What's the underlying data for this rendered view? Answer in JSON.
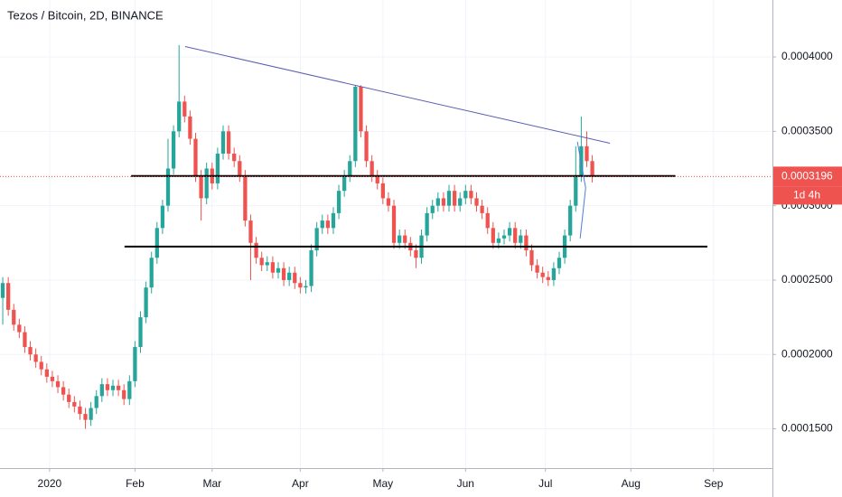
{
  "chart_data": {
    "type": "candlestick",
    "title": "Tezos / Bitcoin, 2D, BINANCE",
    "up_color": "#26a69a",
    "down_color": "#ef5350",
    "open": [
      0.000238,
      0.000248,
      0.00023,
      0.00022,
      0.000215,
      0.000205,
      0.0002,
      0.000195,
      0.00019,
      0.000185,
      0.000182,
      0.000178,
      0.000173,
      0.000168,
      0.000165,
      0.00016,
      0.000156,
      0.000164,
      0.000172,
      0.00018,
      0.000176,
      0.000179,
      0.000176,
      0.00017,
      0.000182,
      0.000205,
      0.000225,
      0.000245,
      0.000265,
      0.000285,
      0.0003,
      0.000325,
      0.00035,
      0.00037,
      0.00036,
      0.000345,
      0.00032,
      0.000305,
      0.000325,
      0.000315,
      0.000335,
      0.00035,
      0.000335,
      0.00033,
      0.00032,
      0.00029,
      0.000275,
      0.000265,
      0.00026,
      0.000262,
      0.000255,
      0.000258,
      0.00025,
      0.000255,
      0.000248,
      0.000245,
      0.000246,
      0.00027,
      0.000285,
      0.00029,
      0.000285,
      0.000295,
      0.00031,
      0.00032,
      0.00033,
      0.00038,
      0.00035,
      0.00033,
      0.00032,
      0.000315,
      0.000305,
      0.0003,
      0.000275,
      0.00028,
      0.000275,
      0.00027,
      0.000265,
      0.00028,
      0.000295,
      0.0003,
      0.000305,
      0.0003,
      0.00031,
      0.0003,
      0.000305,
      0.00031,
      0.000305,
      0.0003,
      0.000295,
      0.000285,
      0.000275,
      0.000278,
      0.00028,
      0.000285,
      0.000275,
      0.00028,
      0.00027,
      0.00026,
      0.000255,
      0.000252,
      0.00025,
      0.000258,
      0.000265,
      0.00028,
      0.0003,
      0.00032,
      0.00034,
      0.00033
    ],
    "high": [
      0.000252,
      0.000252,
      0.000234,
      0.000224,
      0.000219,
      0.000209,
      0.000204,
      0.000199,
      0.000194,
      0.000189,
      0.000186,
      0.000182,
      0.000177,
      0.000172,
      0.000169,
      0.000164,
      0.000168,
      0.000176,
      0.000184,
      0.000184,
      0.000183,
      0.000183,
      0.00018,
      0.000186,
      0.000209,
      0.000229,
      0.000249,
      0.000269,
      0.000289,
      0.000304,
      0.000345,
      0.000354,
      0.000408,
      0.000374,
      0.000364,
      0.000349,
      0.000324,
      0.000329,
      0.000329,
      0.000339,
      0.000354,
      0.000354,
      0.000339,
      0.000334,
      0.000324,
      0.000294,
      0.000279,
      0.000269,
      0.000266,
      0.000266,
      0.000262,
      0.000262,
      0.000259,
      0.000259,
      0.000252,
      0.00025,
      0.000274,
      0.000289,
      0.000294,
      0.000294,
      0.000299,
      0.000314,
      0.000324,
      0.000334,
      0.000381,
      0.000381,
      0.000354,
      0.000334,
      0.000324,
      0.000319,
      0.000309,
      0.000304,
      0.000284,
      0.000284,
      0.000279,
      0.000274,
      0.000284,
      0.000299,
      0.000304,
      0.000309,
      0.000309,
      0.000314,
      0.000314,
      0.000309,
      0.000314,
      0.000314,
      0.000309,
      0.000304,
      0.000299,
      0.000289,
      0.000282,
      0.000284,
      0.000289,
      0.000289,
      0.000284,
      0.000284,
      0.000274,
      0.000264,
      0.000259,
      0.000256,
      0.000262,
      0.000269,
      0.000284,
      0.000304,
      0.00034,
      0.00036,
      0.00035,
      0.000334
    ],
    "low": [
      0.00022,
      0.000226,
      0.000216,
      0.000211,
      0.000201,
      0.000196,
      0.000191,
      0.000186,
      0.000181,
      0.000178,
      0.000174,
      0.000169,
      0.000164,
      0.000161,
      0.000156,
      0.00015,
      0.000152,
      0.00016,
      0.000168,
      0.000172,
      0.000172,
      0.000172,
      0.000166,
      0.000166,
      0.000178,
      0.000201,
      0.000221,
      0.000241,
      0.000261,
      0.000281,
      0.000296,
      0.000321,
      0.000346,
      0.000356,
      0.000341,
      0.000316,
      0.00029,
      0.000301,
      0.000311,
      0.000311,
      0.000331,
      0.000331,
      0.000326,
      0.000316,
      0.000286,
      0.00025,
      0.000261,
      0.000256,
      0.000256,
      0.000251,
      0.000251,
      0.000246,
      0.000246,
      0.000244,
      0.000241,
      0.000241,
      0.000242,
      0.000266,
      0.000281,
      0.000281,
      0.000281,
      0.000291,
      0.000306,
      0.000316,
      0.000326,
      0.000346,
      0.000326,
      0.000316,
      0.000311,
      0.000301,
      0.000296,
      0.000271,
      0.000271,
      0.000271,
      0.000266,
      0.000258,
      0.000261,
      0.000276,
      0.000291,
      0.000296,
      0.000296,
      0.000296,
      0.000296,
      0.000296,
      0.000301,
      0.000301,
      0.000296,
      0.000291,
      0.000281,
      0.000271,
      0.000271,
      0.000274,
      0.000276,
      0.000271,
      0.000271,
      0.000266,
      0.000256,
      0.000251,
      0.000248,
      0.000246,
      0.000246,
      0.000254,
      0.000261,
      0.000276,
      0.000296,
      0.000316,
      0.000326,
      0.0003156
    ],
    "close": [
      0.000248,
      0.00023,
      0.00022,
      0.000215,
      0.000205,
      0.0002,
      0.000195,
      0.00019,
      0.000185,
      0.000182,
      0.000178,
      0.000173,
      0.000168,
      0.000165,
      0.00016,
      0.000156,
      0.000164,
      0.000172,
      0.00018,
      0.000176,
      0.000179,
      0.000176,
      0.00017,
      0.000182,
      0.000205,
      0.000225,
      0.000245,
      0.000265,
      0.000285,
      0.0003,
      0.000325,
      0.00035,
      0.00037,
      0.00036,
      0.000345,
      0.00032,
      0.000305,
      0.000325,
      0.000315,
      0.000335,
      0.00035,
      0.000335,
      0.00033,
      0.00032,
      0.00029,
      0.000275,
      0.000265,
      0.00026,
      0.000262,
      0.000255,
      0.000258,
      0.00025,
      0.000255,
      0.000248,
      0.000245,
      0.000246,
      0.00027,
      0.000285,
      0.00029,
      0.000285,
      0.000295,
      0.00031,
      0.00032,
      0.00033,
      0.00038,
      0.00035,
      0.00033,
      0.00032,
      0.000315,
      0.000305,
      0.0003,
      0.000275,
      0.00028,
      0.000275,
      0.00027,
      0.000265,
      0.00028,
      0.000295,
      0.0003,
      0.000305,
      0.0003,
      0.00031,
      0.0003,
      0.000305,
      0.00031,
      0.000305,
      0.0003,
      0.000295,
      0.000285,
      0.000275,
      0.000278,
      0.00028,
      0.000285,
      0.000275,
      0.00028,
      0.00027,
      0.00026,
      0.000255,
      0.000252,
      0.00025,
      0.000258,
      0.000265,
      0.00028,
      0.0003,
      0.00032,
      0.00034,
      0.00033,
      0.0003196
    ],
    "countdown": "1d 4h",
    "xlim": [
      -0.5,
      139.7
    ],
    "xticks": [
      {
        "value": 8.5,
        "label": "2020"
      },
      {
        "value": 24,
        "label": "Feb"
      },
      {
        "value": 38,
        "label": "Mar"
      },
      {
        "value": 54,
        "label": "Apr"
      },
      {
        "value": 69,
        "label": "May"
      },
      {
        "value": 84,
        "label": "Jun"
      },
      {
        "value": 98.5,
        "label": "Jul"
      },
      {
        "value": 114,
        "label": "Aug"
      },
      {
        "value": 129,
        "label": "Sep"
      }
    ],
    "ylim": [
      0.0001236,
      0.0004383
    ],
    "yticks": [
      {
        "value": 0.00015,
        "label": "0.0001500"
      },
      {
        "value": 0.0002,
        "label": "0.0002000"
      },
      {
        "value": 0.00025,
        "label": "0.0002500"
      },
      {
        "value": 0.0003,
        "label": "0.0003000"
      },
      {
        "value": 0.00035,
        "label": "0.0003500"
      },
      {
        "value": 0.0004,
        "label": "0.0004000"
      }
    ],
    "grid": true,
    "drawings": [
      {
        "color": "#5b5fb0",
        "x": [
          33.1,
          110.2
        ],
        "y": [
          0.000407,
          0.000342
        ]
      },
      {
        "color": "#000000",
        "x": [
          23.3,
          122.1
        ],
        "y": [
          0.00032,
          0.00032
        ]
      },
      {
        "color": "#000000",
        "x": [
          22.1,
          127.9
        ],
        "y": [
          0.0002725,
          0.0002725
        ]
      },
      {
        "color": "#4a7fd8",
        "x": [
          104.3,
          105.8,
          104.8
        ],
        "y": [
          0.000343,
          0.000312,
          0.000278
        ]
      }
    ]
  }
}
